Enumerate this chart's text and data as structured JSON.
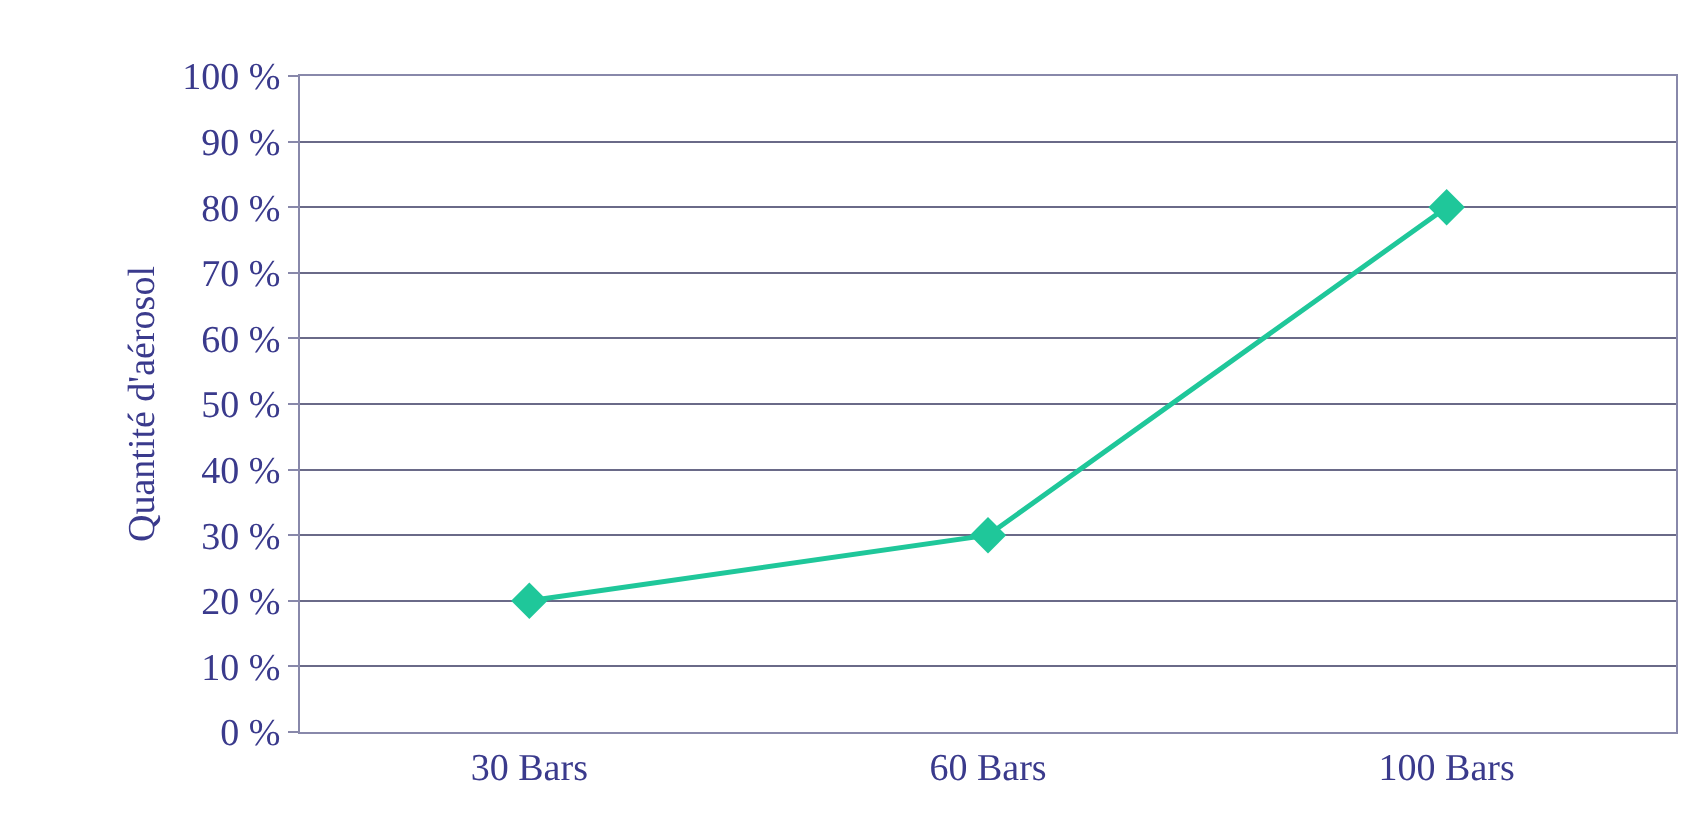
{
  "chart_data": {
    "type": "line",
    "ylabel": "Quantité d'aérosol",
    "categories": [
      "30 Bars",
      "60 Bars",
      "100 Bars"
    ],
    "series": [
      {
        "color": "#1fc79a",
        "values": [
          20,
          30,
          80
        ]
      }
    ],
    "ylim": [
      0,
      100
    ],
    "yticks": [
      {
        "value": 0,
        "label": "0 %"
      },
      {
        "value": 10,
        "label": "10 %"
      },
      {
        "value": 20,
        "label": "20 %"
      },
      {
        "value": 30,
        "label": "30 %"
      },
      {
        "value": 40,
        "label": "40 %"
      },
      {
        "value": 50,
        "label": "50 %"
      },
      {
        "value": 60,
        "label": "60 %"
      },
      {
        "value": 70,
        "label": "70 %"
      },
      {
        "value": 80,
        "label": "80 %"
      },
      {
        "value": 90,
        "label": "90 %"
      },
      {
        "value": 100,
        "label": "100 %"
      }
    ],
    "grid": "y",
    "marker": "diamond",
    "line_style": "solid"
  }
}
